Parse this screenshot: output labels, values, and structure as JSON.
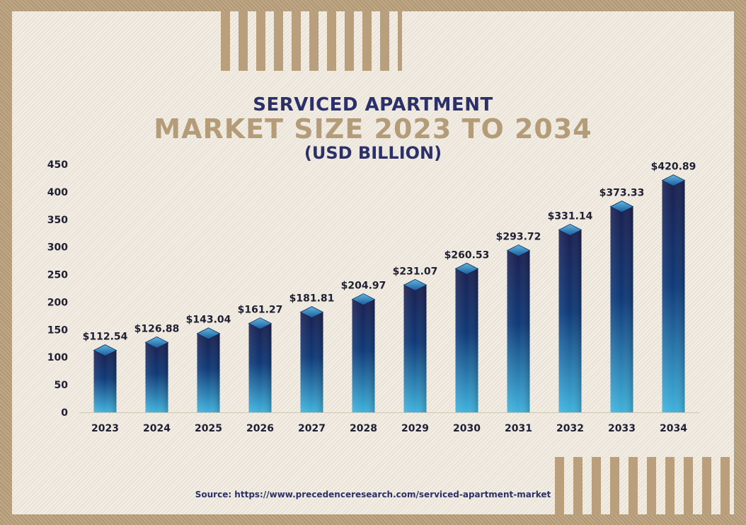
{
  "header": {
    "title_line1": "SERVICED APARTMENT",
    "title_line2": "MARKET SIZE 2023 TO 2034",
    "title_line3": "(USD BILLION)"
  },
  "footer": {
    "source": "Source: https://www.precedenceresearch.com/serviced-apartment-market"
  },
  "colors": {
    "bar_top": "#1b2050",
    "bar_bottom": "#3fb2dc",
    "title_dark": "#2b3069",
    "title_gold": "#b59c78",
    "text": "#1f1f33"
  },
  "chart_data": {
    "type": "bar",
    "title": "SERVICED APARTMENT MARKET SIZE 2023 TO 2034 (USD BILLION)",
    "xlabel": "",
    "ylabel": "",
    "ylim": [
      0,
      450
    ],
    "yticks": [
      0,
      50,
      100,
      150,
      200,
      250,
      300,
      350,
      400,
      450
    ],
    "categories": [
      "2023",
      "2024",
      "2025",
      "2026",
      "2027",
      "2028",
      "2029",
      "2030",
      "2031",
      "2032",
      "2033",
      "2034"
    ],
    "values": [
      112.54,
      126.88,
      143.04,
      161.27,
      181.81,
      204.97,
      231.07,
      260.53,
      293.72,
      331.14,
      373.33,
      420.89
    ],
    "labels": [
      "$112.54",
      "$126.88",
      "$143.04",
      "$161.27",
      "$181.81",
      "$204.97",
      "$231.07",
      "$260.53",
      "$293.72",
      "$331.14",
      "$373.33",
      "$420.89"
    ]
  }
}
